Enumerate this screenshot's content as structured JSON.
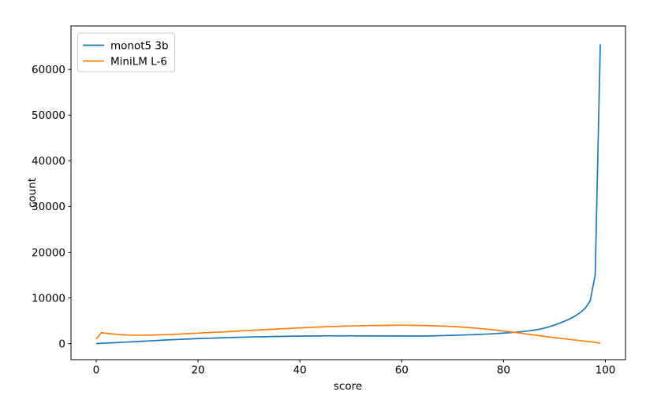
{
  "figure": {
    "background": "#ffffff",
    "spine_color": "#000000",
    "legend_border_color": "#cccccc"
  },
  "chart_data": {
    "type": "line",
    "title": "",
    "xlabel": "score",
    "ylabel": "count",
    "xlim": [
      -4.95,
      103.95
    ],
    "ylim": [
      -3500,
      69500
    ],
    "x_ticks": [
      0,
      20,
      40,
      60,
      80,
      100
    ],
    "y_ticks": [
      0,
      10000,
      20000,
      30000,
      40000,
      50000,
      60000
    ],
    "grid": false,
    "legend": {
      "location": "upper left"
    },
    "x": [
      0,
      1,
      2,
      3,
      4,
      5,
      6,
      7,
      8,
      9,
      10,
      11,
      12,
      13,
      14,
      15,
      16,
      17,
      18,
      19,
      20,
      21,
      22,
      23,
      24,
      25,
      26,
      27,
      28,
      29,
      30,
      31,
      32,
      33,
      34,
      35,
      36,
      37,
      38,
      39,
      40,
      41,
      42,
      43,
      44,
      45,
      46,
      47,
      48,
      49,
      50,
      51,
      52,
      53,
      54,
      55,
      56,
      57,
      58,
      59,
      60,
      61,
      62,
      63,
      64,
      65,
      66,
      67,
      68,
      69,
      70,
      71,
      72,
      73,
      74,
      75,
      76,
      77,
      78,
      79,
      80,
      81,
      82,
      83,
      84,
      85,
      86,
      87,
      88,
      89,
      90,
      91,
      92,
      93,
      94,
      95,
      96,
      97,
      98,
      99
    ],
    "series": [
      {
        "name": "monot5 3b",
        "color": "#1f77b4",
        "values": [
          30,
          80,
          130,
          180,
          230,
          280,
          340,
          400,
          460,
          520,
          580,
          640,
          700,
          760,
          820,
          870,
          920,
          970,
          1020,
          1060,
          1100,
          1140,
          1180,
          1220,
          1260,
          1300,
          1330,
          1360,
          1390,
          1420,
          1450,
          1480,
          1500,
          1520,
          1540,
          1560,
          1580,
          1600,
          1620,
          1640,
          1650,
          1660,
          1670,
          1680,
          1690,
          1700,
          1700,
          1710,
          1700,
          1710,
          1700,
          1700,
          1690,
          1700,
          1690,
          1680,
          1690,
          1680,
          1670,
          1680,
          1670,
          1660,
          1670,
          1660,
          1670,
          1690,
          1710,
          1730,
          1760,
          1790,
          1820,
          1850,
          1890,
          1930,
          1970,
          2010,
          2060,
          2110,
          2170,
          2240,
          2310,
          2390,
          2470,
          2560,
          2670,
          2800,
          2960,
          3160,
          3400,
          3700,
          4060,
          4470,
          4920,
          5420,
          6000,
          6750,
          7700,
          9300,
          15000,
          65500
        ]
      },
      {
        "name": "MiniLM L-6",
        "color": "#ff7f0e",
        "values": [
          1000,
          2400,
          2260,
          2140,
          2040,
          1960,
          1900,
          1870,
          1850,
          1850,
          1860,
          1880,
          1910,
          1940,
          1980,
          2030,
          2080,
          2130,
          2180,
          2240,
          2300,
          2360,
          2410,
          2470,
          2530,
          2580,
          2640,
          2700,
          2760,
          2820,
          2880,
          2940,
          3000,
          3060,
          3110,
          3170,
          3230,
          3290,
          3340,
          3400,
          3450,
          3500,
          3550,
          3600,
          3640,
          3690,
          3730,
          3770,
          3800,
          3840,
          3870,
          3890,
          3920,
          3940,
          3960,
          3980,
          3990,
          4000,
          4010,
          4020,
          4020,
          4020,
          4010,
          4000,
          3980,
          3950,
          3920,
          3880,
          3840,
          3800,
          3750,
          3690,
          3620,
          3540,
          3450,
          3360,
          3250,
          3140,
          3020,
          2890,
          2750,
          2620,
          2500,
          2380,
          2190,
          2050,
          1900,
          1750,
          1600,
          1460,
          1320,
          1180,
          1050,
          920,
          790,
          670,
          550,
          430,
          300,
          110
        ]
      }
    ]
  }
}
